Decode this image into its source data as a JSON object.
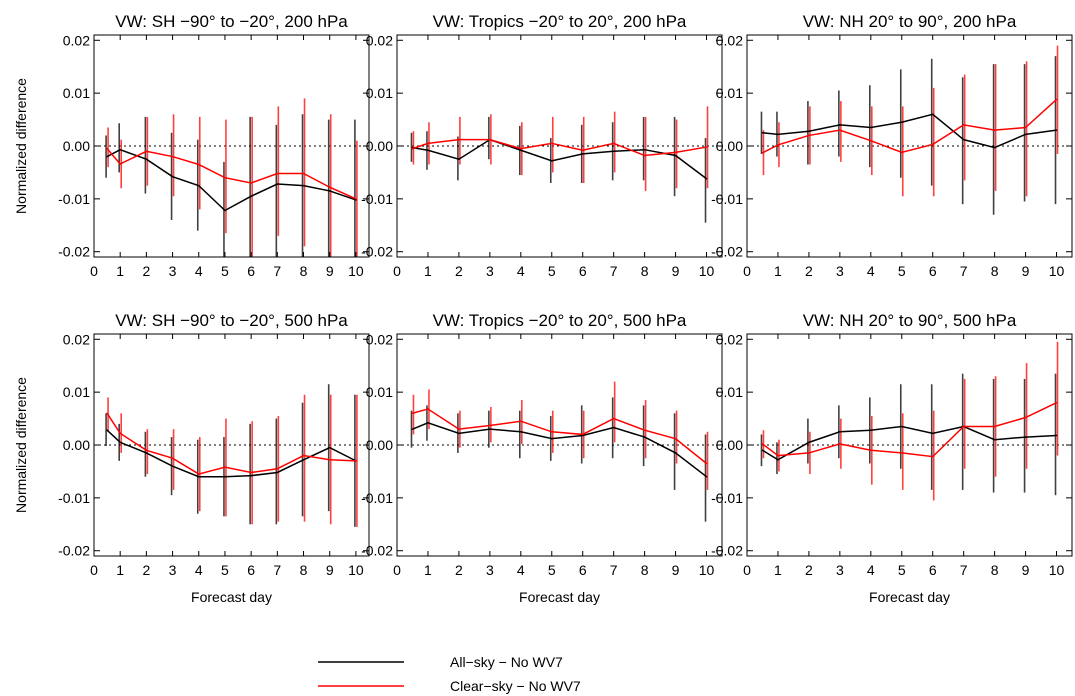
{
  "chart_data": [
    {
      "type": "line",
      "title": "VW: SH −90° to −20°, 200 hPa",
      "xlabel": "",
      "ylabel": "Normalized difference",
      "xlim": [
        0,
        10.5
      ],
      "ylim": [
        -0.021,
        0.021
      ],
      "xticks": [
        "0",
        "1",
        "2",
        "3",
        "4",
        "5",
        "6",
        "7",
        "8",
        "9",
        "10"
      ],
      "yticks": [
        "-0.02",
        "-0.01",
        "0.00",
        "0.01",
        "0.02"
      ],
      "zero_line": "dotted",
      "x": [
        0.5,
        1,
        2,
        3,
        4,
        5,
        6,
        7,
        8,
        9,
        10
      ],
      "series": [
        {
          "name": "All−sky − No WV7",
          "color": "#000000",
          "values": [
            -0.002,
            -0.0007,
            -0.0025,
            -0.0058,
            -0.0075,
            -0.0122,
            -0.0095,
            -0.0072,
            -0.0075,
            -0.0085,
            -0.0102
          ],
          "lower": [
            -0.006,
            -0.005,
            -0.009,
            -0.014,
            -0.016,
            -0.021,
            -0.021,
            -0.021,
            -0.021,
            -0.021,
            -0.021
          ],
          "upper": [
            0.002,
            0.0043,
            0.0055,
            0.0025,
            0.0012,
            -0.003,
            0.0055,
            0.004,
            0.006,
            0.005,
            0.005
          ]
        },
        {
          "name": "Clear−sky − No WV7",
          "color": "#ff0000",
          "values": [
            -0.0005,
            -0.0034,
            -0.001,
            -0.002,
            -0.0035,
            -0.006,
            -0.007,
            -0.0052,
            -0.0052,
            -0.0078,
            -0.01
          ],
          "lower": [
            -0.004,
            -0.008,
            -0.0075,
            -0.0095,
            -0.012,
            -0.0165,
            -0.021,
            -0.017,
            -0.019,
            -0.021,
            -0.021
          ],
          "upper": [
            0.0035,
            0.0012,
            0.0055,
            0.006,
            0.0055,
            0.005,
            0.0055,
            0.0075,
            0.009,
            0.006,
            0.001
          ]
        }
      ]
    },
    {
      "type": "line",
      "title": "VW: Tropics −20° to 20°, 200 hPa",
      "xlabel": "",
      "ylabel": "",
      "xlim": [
        0,
        10.5
      ],
      "ylim": [
        -0.021,
        0.021
      ],
      "xticks": [
        "0",
        "1",
        "2",
        "3",
        "4",
        "5",
        "6",
        "7",
        "8",
        "9",
        "10"
      ],
      "yticks": [
        "-0.02",
        "-0.01",
        "0.00",
        "0.01",
        "0.02"
      ],
      "zero_line": "dotted",
      "x": [
        0.5,
        1,
        2,
        3,
        4,
        5,
        6,
        7,
        8,
        9,
        10
      ],
      "series": [
        {
          "name": "All−sky − No WV7",
          "color": "#000000",
          "values": [
            -0.0003,
            -0.0008,
            -0.0025,
            0.0012,
            -0.0008,
            -0.0028,
            -0.0015,
            -0.001,
            -0.0007,
            -0.0018,
            -0.0062
          ],
          "lower": [
            -0.003,
            -0.0045,
            -0.0065,
            -0.0025,
            -0.0055,
            -0.007,
            -0.007,
            -0.0065,
            -0.0065,
            -0.0095,
            -0.0145
          ],
          "upper": [
            0.0025,
            0.0028,
            0.0018,
            0.0055,
            0.0038,
            0.0015,
            0.004,
            0.0045,
            0.0055,
            0.0055,
            0.0015
          ]
        },
        {
          "name": "Clear−sky − No WV7",
          "color": "#ff0000",
          "values": [
            -0.0005,
            0.0005,
            0.0012,
            0.0012,
            -0.0005,
            0.0005,
            -0.0008,
            0.0005,
            -0.0018,
            -0.0012,
            -0.0002
          ],
          "lower": [
            -0.0035,
            -0.0035,
            -0.0035,
            -0.0035,
            -0.0055,
            -0.005,
            -0.007,
            -0.005,
            -0.0085,
            -0.008,
            -0.008
          ],
          "upper": [
            0.0028,
            0.0045,
            0.0055,
            0.006,
            0.0045,
            0.0055,
            0.0055,
            0.0065,
            0.0055,
            0.005,
            0.0075
          ]
        }
      ]
    },
    {
      "type": "line",
      "title": "VW: NH 20° to 90°, 200 hPa",
      "xlabel": "",
      "ylabel": "",
      "xlim": [
        0,
        10.5
      ],
      "ylim": [
        -0.021,
        0.021
      ],
      "xticks": [
        "0",
        "1",
        "2",
        "3",
        "4",
        "5",
        "6",
        "7",
        "8",
        "9",
        "10"
      ],
      "yticks": [
        "-0.02",
        "-0.01",
        "0.00",
        "0.01",
        "0.02"
      ],
      "zero_line": "dotted",
      "x": [
        0.5,
        1,
        2,
        3,
        4,
        5,
        6,
        7,
        8,
        9,
        10
      ],
      "series": [
        {
          "name": "All−sky − No WV7",
          "color": "#000000",
          "values": [
            0.0025,
            0.0022,
            0.0028,
            0.004,
            0.0035,
            0.0045,
            0.006,
            0.0012,
            -0.0003,
            0.0022,
            0.003
          ],
          "lower": [
            -0.0015,
            -0.002,
            -0.0035,
            -0.002,
            -0.004,
            -0.006,
            -0.0075,
            -0.011,
            -0.013,
            -0.0105,
            -0.011
          ],
          "upper": [
            0.0065,
            0.0065,
            0.0085,
            0.0105,
            0.0115,
            0.0145,
            0.0165,
            0.013,
            0.0155,
            0.0155,
            0.017
          ]
        },
        {
          "name": "Clear−sky − No WV7",
          "color": "#ff0000",
          "values": [
            -0.0013,
            0.0002,
            0.002,
            0.003,
            0.001,
            -0.0012,
            0.0003,
            0.004,
            0.003,
            0.0035,
            0.0088
          ],
          "lower": [
            -0.0055,
            -0.004,
            -0.0035,
            -0.003,
            -0.0055,
            -0.0095,
            -0.0095,
            -0.0065,
            -0.0085,
            -0.0095,
            -0.0015
          ],
          "upper": [
            0.003,
            0.0045,
            0.0075,
            0.0085,
            0.0075,
            0.0075,
            0.011,
            0.0135,
            0.0155,
            0.016,
            0.019
          ]
        }
      ]
    },
    {
      "type": "line",
      "title": "VW: SH −90° to −20°, 500 hPa",
      "xlabel": "Forecast day",
      "ylabel": "Normalized difference",
      "xlim": [
        0,
        10.5
      ],
      "ylim": [
        -0.021,
        0.021
      ],
      "xticks": [
        "0",
        "1",
        "2",
        "3",
        "4",
        "5",
        "6",
        "7",
        "8",
        "9",
        "10"
      ],
      "yticks": [
        "-0.02",
        "-0.01",
        "0.00",
        "0.01",
        "0.02"
      ],
      "zero_line": "dotted",
      "x": [
        0.5,
        1,
        2,
        3,
        4,
        5,
        6,
        7,
        8,
        9,
        10
      ],
      "series": [
        {
          "name": "All−sky − No WV7",
          "color": "#000000",
          "values": [
            0.0028,
            0.0005,
            -0.0015,
            -0.004,
            -0.006,
            -0.006,
            -0.0058,
            -0.0052,
            -0.0028,
            -0.0005,
            -0.003
          ],
          "lower": [
            -0.0002,
            -0.003,
            -0.006,
            -0.0095,
            -0.013,
            -0.0135,
            -0.015,
            -0.015,
            -0.0135,
            -0.0125,
            -0.0155
          ],
          "upper": [
            0.006,
            0.004,
            0.0025,
            0.0015,
            0.001,
            0.0015,
            0.004,
            0.005,
            0.008,
            0.0115,
            0.0095
          ]
        },
        {
          "name": "Clear−sky − No WV7",
          "color": "#ff0000",
          "values": [
            0.006,
            0.0022,
            -0.001,
            -0.0025,
            -0.0055,
            -0.0042,
            -0.0052,
            -0.0045,
            -0.002,
            -0.0028,
            -0.003
          ],
          "lower": [
            0.0025,
            -0.0015,
            -0.0055,
            -0.0085,
            -0.0125,
            -0.0135,
            -0.015,
            -0.0145,
            -0.0145,
            -0.015,
            -0.0155
          ],
          "upper": [
            0.009,
            0.006,
            0.003,
            0.003,
            0.0015,
            0.005,
            0.0045,
            0.0055,
            0.0095,
            0.0095,
            0.0095
          ]
        }
      ]
    },
    {
      "type": "line",
      "title": "VW: Tropics −20° to 20°, 500 hPa",
      "xlabel": "Forecast day",
      "ylabel": "",
      "xlim": [
        0,
        10.5
      ],
      "ylim": [
        -0.021,
        0.021
      ],
      "xticks": [
        "0",
        "1",
        "2",
        "3",
        "4",
        "5",
        "6",
        "7",
        "8",
        "9",
        "10"
      ],
      "yticks": [
        "-0.02",
        "-0.01",
        "0.00",
        "0.01",
        "0.02"
      ],
      "zero_line": "dotted",
      "x": [
        0.5,
        1,
        2,
        3,
        4,
        5,
        6,
        7,
        8,
        9,
        10
      ],
      "series": [
        {
          "name": "All−sky − No WV7",
          "color": "#000000",
          "values": [
            0.003,
            0.0042,
            0.0022,
            0.003,
            0.0025,
            0.0012,
            0.0018,
            0.0033,
            0.0015,
            -0.0015,
            -0.006
          ],
          "lower": [
            -0.0005,
            0.0008,
            -0.0015,
            -0.0005,
            -0.0025,
            -0.003,
            -0.0035,
            -0.0025,
            -0.004,
            -0.0085,
            -0.0145
          ],
          "upper": [
            0.0065,
            0.0075,
            0.006,
            0.0065,
            0.0065,
            0.0055,
            0.0075,
            0.009,
            0.0075,
            0.006,
            0.002
          ]
        },
        {
          "name": "Clear−sky − No WV7",
          "color": "#ff0000",
          "values": [
            0.006,
            0.0068,
            0.003,
            0.0037,
            0.0045,
            0.0025,
            0.002,
            0.005,
            0.0028,
            0.0012,
            -0.0035
          ],
          "lower": [
            0.002,
            0.003,
            -0.0005,
            0.0005,
            0.0002,
            -0.0015,
            -0.0025,
            0.0005,
            -0.0025,
            -0.0035,
            -0.0085
          ],
          "upper": [
            0.0095,
            0.0105,
            0.0065,
            0.0072,
            0.0085,
            0.0065,
            0.0065,
            0.012,
            0.0085,
            0.0065,
            0.0025
          ]
        }
      ]
    },
    {
      "type": "line",
      "title": "VW: NH 20° to 90°, 500 hPa",
      "xlabel": "Forecast day",
      "ylabel": "",
      "xlim": [
        0,
        10.5
      ],
      "ylim": [
        -0.021,
        0.021
      ],
      "xticks": [
        "0",
        "1",
        "2",
        "3",
        "4",
        "5",
        "6",
        "7",
        "8",
        "9",
        "10"
      ],
      "yticks": [
        "-0.02",
        "-0.01",
        "0.00",
        "0.01",
        "0.02"
      ],
      "zero_line": "dotted",
      "x": [
        0.5,
        1,
        2,
        3,
        4,
        5,
        6,
        7,
        8,
        9,
        10
      ],
      "series": [
        {
          "name": "All−sky − No WV7",
          "color": "#000000",
          "values": [
            -0.001,
            -0.0028,
            0.0005,
            0.0025,
            0.0028,
            0.0035,
            0.0022,
            0.0035,
            0.001,
            0.0015,
            0.0018
          ],
          "lower": [
            -0.004,
            -0.0055,
            -0.0035,
            -0.0025,
            -0.0035,
            -0.0045,
            -0.0085,
            -0.0085,
            -0.009,
            -0.009,
            -0.0095
          ],
          "upper": [
            0.002,
            0.0005,
            0.005,
            0.0075,
            0.009,
            0.0115,
            0.0115,
            0.0135,
            0.0125,
            0.0125,
            0.0135
          ]
        },
        {
          "name": "Clear−sky − No WV7",
          "color": "#ff0000",
          "values": [
            0.0002,
            -0.002,
            -0.0015,
            0.0002,
            -0.001,
            -0.0015,
            -0.0022,
            0.0035,
            0.0035,
            0.0052,
            0.008
          ],
          "lower": [
            -0.0025,
            -0.005,
            -0.0055,
            -0.0045,
            -0.0075,
            -0.0085,
            -0.0105,
            -0.0045,
            -0.006,
            -0.0045,
            -0.002
          ],
          "upper": [
            0.0028,
            0.001,
            0.0025,
            0.005,
            0.0055,
            0.006,
            0.0065,
            0.0125,
            0.013,
            0.0155,
            0.0195
          ]
        }
      ]
    }
  ],
  "legend": {
    "items": [
      {
        "label": "All−sky − No WV7",
        "color": "#000000"
      },
      {
        "label": "Clear−sky − No WV7",
        "color": "#ff0000"
      }
    ]
  }
}
